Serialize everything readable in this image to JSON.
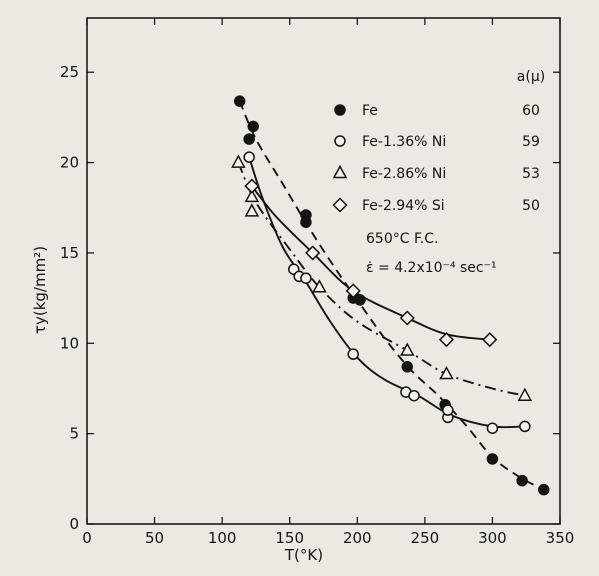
{
  "chart_data": {
    "type": "scatter",
    "title": "",
    "xlabel": "T(°K)",
    "ylabel": "τy(kg/mm²)",
    "xlim": [
      0,
      350
    ],
    "ylim": [
      0,
      28
    ],
    "xticks": [
      0,
      50,
      100,
      150,
      200,
      250,
      300,
      350
    ],
    "yticks": [
      0,
      5,
      10,
      15,
      20,
      25
    ],
    "grid": false,
    "legend_position": "top-right",
    "legend_header": "a(μ)",
    "conditions": [
      "650°C  F.C.",
      "ε̇ = 4.2x10⁻⁴ sec⁻¹"
    ],
    "series": [
      {
        "name": "Fe",
        "grain_size": "60",
        "marker": "filled-circle",
        "line": "dashed",
        "points": [
          [
            113,
            23.4
          ],
          [
            120,
            21.3
          ],
          [
            123,
            22.0
          ],
          [
            162,
            16.7
          ],
          [
            162,
            17.1
          ],
          [
            197,
            12.5
          ],
          [
            202,
            12.4
          ],
          [
            237,
            8.7
          ],
          [
            265,
            6.6
          ],
          [
            300,
            3.6
          ],
          [
            322,
            2.4
          ],
          [
            338,
            1.9
          ]
        ],
        "curve": [
          [
            113,
            23.4
          ],
          [
            125,
            21.3
          ],
          [
            145,
            18.8
          ],
          [
            165,
            16.3
          ],
          [
            185,
            14.0
          ],
          [
            200,
            12.4
          ],
          [
            220,
            10.3
          ],
          [
            240,
            8.5
          ],
          [
            260,
            7.1
          ],
          [
            280,
            5.5
          ],
          [
            300,
            3.7
          ],
          [
            320,
            2.6
          ],
          [
            338,
            1.9
          ]
        ]
      },
      {
        "name": "Fe-1.36% Ni",
        "grain_size": "59",
        "marker": "open-circle",
        "line": "solid",
        "points": [
          [
            120,
            20.3
          ],
          [
            153,
            14.1
          ],
          [
            157,
            13.7
          ],
          [
            162,
            13.6
          ],
          [
            197,
            9.4
          ],
          [
            236,
            7.3
          ],
          [
            242,
            7.1
          ],
          [
            267,
            5.9
          ],
          [
            267,
            6.3
          ],
          [
            300,
            5.3
          ],
          [
            324,
            5.4
          ]
        ],
        "curve": [
          [
            120,
            20.3
          ],
          [
            130,
            18.0
          ],
          [
            145,
            15.3
          ],
          [
            162,
            13.4
          ],
          [
            180,
            11.2
          ],
          [
            200,
            9.2
          ],
          [
            220,
            8.0
          ],
          [
            245,
            7.1
          ],
          [
            270,
            6.0
          ],
          [
            300,
            5.4
          ],
          [
            324,
            5.4
          ]
        ]
      },
      {
        "name": "Fe-2.86% Ni",
        "grain_size": "53",
        "marker": "open-triangle",
        "line": "dash-dot",
        "points": [
          [
            112,
            20.0
          ],
          [
            122,
            18.1
          ],
          [
            122,
            17.3
          ],
          [
            172,
            13.1
          ],
          [
            237,
            9.6
          ],
          [
            266,
            8.3
          ],
          [
            324,
            7.1
          ]
        ],
        "curve": [
          [
            112,
            20.0
          ],
          [
            125,
            17.8
          ],
          [
            150,
            15.2
          ],
          [
            172,
            13.1
          ],
          [
            200,
            11.2
          ],
          [
            237,
            9.6
          ],
          [
            266,
            8.3
          ],
          [
            300,
            7.5
          ],
          [
            324,
            7.1
          ]
        ]
      },
      {
        "name": "Fe-2.94% Si",
        "grain_size": "50",
        "marker": "open-diamond",
        "line": "solid",
        "points": [
          [
            122,
            18.7
          ],
          [
            167,
            15.0
          ],
          [
            197,
            12.9
          ],
          [
            237,
            11.4
          ],
          [
            266,
            10.2
          ],
          [
            298,
            10.2
          ]
        ],
        "curve": [
          [
            122,
            18.7
          ],
          [
            140,
            17.0
          ],
          [
            167,
            15.0
          ],
          [
            197,
            12.9
          ],
          [
            237,
            11.4
          ],
          [
            266,
            10.5
          ],
          [
            298,
            10.2
          ]
        ]
      }
    ]
  }
}
